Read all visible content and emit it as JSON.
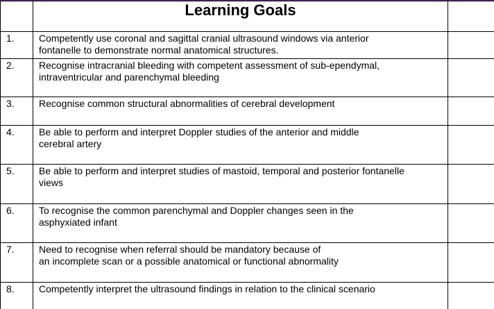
{
  "table": {
    "title": "Learning Goals",
    "goals": [
      {
        "num": "1.",
        "lines": [
          "Competently use coronal and sagittal cranial ultrasound windows via anterior",
          "fontanelle to demonstrate normal anatomical structures."
        ]
      },
      {
        "num": "2.",
        "lines": [
          "Recognise intracranial bleeding with competent assessment of sub-ependymal,",
          "intraventricular and parenchymal bleeding"
        ]
      },
      {
        "num": "3.",
        "lines": [
          "Recognise common structural abnormalities of cerebral development"
        ]
      },
      {
        "num": "4.",
        "lines": [
          "Be able to perform and interpret Doppler studies of the anterior and middle",
          "cerebral artery"
        ]
      },
      {
        "num": "5.",
        "lines": [
          "Be able to perform and interpret studies of mastoid, temporal and posterior fontanelle",
          "views"
        ]
      },
      {
        "num": "6.",
        "lines": [
          "To recognise the common parenchymal and Doppler changes seen in the",
          "asphyxiated infant"
        ]
      },
      {
        "num": "7.",
        "lines": [
          "Need to recognise when referral should be mandatory because of",
          "an incomplete scan or a possible anatomical or functional abnormality"
        ]
      },
      {
        "num": "8.",
        "lines": [
          "Competently interpret the ultrasound findings in relation to the clinical scenario"
        ]
      }
    ]
  }
}
